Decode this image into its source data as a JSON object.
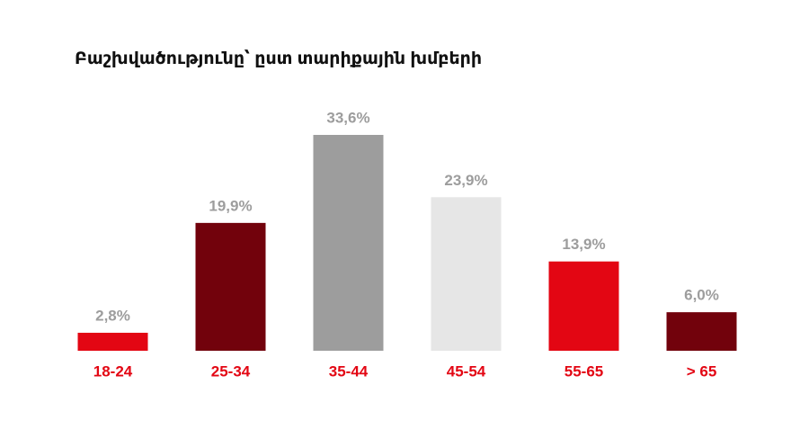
{
  "chart_data": {
    "type": "bar",
    "title": "Բաշխվածությունը՝ ըստ տարիքային խմբերի",
    "categories": [
      "18-24",
      "25-34",
      "35-44",
      "45-54",
      "55-65",
      "> 65"
    ],
    "values": [
      2.8,
      19.9,
      33.6,
      23.9,
      13.9,
      6.0
    ],
    "value_labels": [
      "2,8%",
      "19,9%",
      "33,6%",
      "23,9%",
      "13,9%",
      "6,0%"
    ],
    "colors": [
      "#e30613",
      "#72020c",
      "#9d9d9d",
      "#e6e6e6",
      "#e30613",
      "#72020c"
    ]
  }
}
